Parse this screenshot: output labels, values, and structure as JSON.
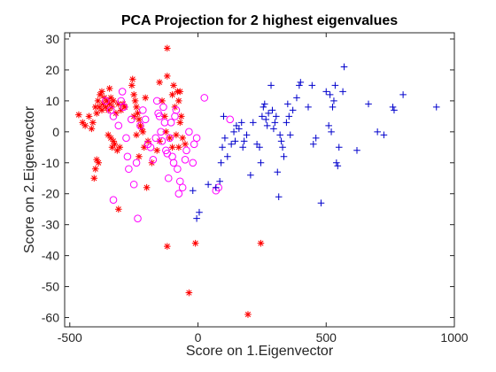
{
  "chart_data": {
    "type": "scatter",
    "title": "PCA Projection for 2 highest eigenvalues",
    "xlabel": "Score on 1.Eigenvector",
    "ylabel": "Score on 2.Eigenvector",
    "xlim": [
      -520,
      1000
    ],
    "ylim": [
      -63,
      32
    ],
    "xticks": [
      -500,
      0,
      500,
      1000
    ],
    "yticks": [
      -60,
      -50,
      -40,
      -30,
      -20,
      -10,
      0,
      10,
      20,
      30
    ],
    "grid": false,
    "legend": "none",
    "series": [
      {
        "marker": "asterisk",
        "color": "#ff0000",
        "points": [
          [
            -465,
            5.5
          ],
          [
            -450,
            3
          ],
          [
            -440,
            2
          ],
          [
            -425,
            5
          ],
          [
            -415,
            1
          ],
          [
            -410,
            3
          ],
          [
            -400,
            8
          ],
          [
            -395,
            6
          ],
          [
            -390,
            10
          ],
          [
            -385,
            8
          ],
          [
            -382,
            12
          ],
          [
            -375,
            7
          ],
          [
            -370,
            9
          ],
          [
            -365,
            11
          ],
          [
            -360,
            8
          ],
          [
            -355,
            10
          ],
          [
            -350,
            7
          ],
          [
            -345,
            9
          ],
          [
            -340,
            11
          ],
          [
            -335,
            8
          ],
          [
            -330,
            10
          ],
          [
            -320,
            6
          ],
          [
            -310,
            9
          ],
          [
            -300,
            7
          ],
          [
            -292,
            9
          ],
          [
            -285,
            8
          ],
          [
            -375,
            13
          ],
          [
            -345,
            14
          ],
          [
            -330,
            -3
          ],
          [
            -340,
            -2
          ],
          [
            -335,
            -5
          ],
          [
            -325,
            -4
          ],
          [
            -315,
            -6
          ],
          [
            -305,
            -5
          ],
          [
            -388,
            -10
          ],
          [
            -400,
            -12
          ],
          [
            -405,
            -15
          ],
          [
            -310,
            -25
          ],
          [
            -395,
            -9
          ],
          [
            -350,
            -1
          ],
          [
            -255,
            17
          ],
          [
            -258,
            15
          ],
          [
            -250,
            12
          ],
          [
            -245,
            10
          ],
          [
            -240,
            8
          ],
          [
            -235,
            6
          ],
          [
            -250,
            5
          ],
          [
            -230,
            4
          ],
          [
            -225,
            2
          ],
          [
            -220,
            1
          ],
          [
            -240,
            -1
          ],
          [
            -210,
            -5
          ],
          [
            -230,
            -8
          ],
          [
            -215,
            0
          ],
          [
            -195,
            -3
          ],
          [
            -205,
            11
          ],
          [
            -200,
            -18
          ],
          [
            -180,
            -10
          ],
          [
            -160,
            -6
          ],
          [
            -150,
            -3
          ],
          [
            -140,
            10
          ],
          [
            -130,
            5
          ],
          [
            -125,
            0
          ],
          [
            -110,
            -2
          ],
          [
            -100,
            12
          ],
          [
            -95,
            15
          ],
          [
            -90,
            8
          ],
          [
            -80,
            13
          ],
          [
            -75,
            10
          ],
          [
            -70,
            3
          ],
          [
            -65,
            5
          ],
          [
            -60,
            -2
          ],
          [
            -75,
            -5
          ],
          [
            -70,
            13
          ],
          [
            -50,
            -4
          ],
          [
            -85,
            -1
          ],
          [
            -120,
            27
          ],
          [
            -120,
            18
          ],
          [
            -120,
            -37
          ],
          [
            -100,
            -5
          ],
          [
            -10,
            -36
          ],
          [
            -35,
            -52
          ],
          [
            245,
            -36
          ],
          [
            195,
            -59
          ],
          [
            -150,
            16
          ]
        ]
      },
      {
        "marker": "circle",
        "color": "#ff00ff",
        "points": [
          [
            -360,
            10
          ],
          [
            -340,
            7
          ],
          [
            -330,
            5
          ],
          [
            -310,
            2
          ],
          [
            -300,
            10
          ],
          [
            -295,
            13
          ],
          [
            -290,
            8
          ],
          [
            -280,
            -2
          ],
          [
            -275,
            -8
          ],
          [
            -270,
            -12
          ],
          [
            -260,
            4
          ],
          [
            -250,
            -17
          ],
          [
            -240,
            -10
          ],
          [
            -235,
            -28
          ],
          [
            -225,
            2
          ],
          [
            -215,
            7
          ],
          [
            -205,
            4
          ],
          [
            -195,
            -4
          ],
          [
            -185,
            -5
          ],
          [
            -175,
            -9
          ],
          [
            -165,
            -2
          ],
          [
            -160,
            10
          ],
          [
            -155,
            6
          ],
          [
            -150,
            5
          ],
          [
            -145,
            0
          ],
          [
            -140,
            -3
          ],
          [
            -135,
            8
          ],
          [
            -130,
            3
          ],
          [
            -125,
            -6
          ],
          [
            -120,
            -7
          ],
          [
            -115,
            -15
          ],
          [
            -110,
            -2
          ],
          [
            -105,
            3
          ],
          [
            -100,
            -8
          ],
          [
            -95,
            -10
          ],
          [
            -90,
            5
          ],
          [
            -85,
            7
          ],
          [
            -80,
            -12
          ],
          [
            -75,
            -20
          ],
          [
            -70,
            -16
          ],
          [
            -60,
            -18
          ],
          [
            -50,
            -9
          ],
          [
            -45,
            -6
          ],
          [
            -35,
            0
          ],
          [
            -20,
            -10
          ],
          [
            -15,
            -4
          ],
          [
            -5,
            -2
          ],
          [
            25,
            11
          ],
          [
            70,
            -19
          ],
          [
            80,
            -18
          ],
          [
            125,
            4
          ],
          [
            -330,
            -22
          ]
        ]
      },
      {
        "marker": "plus",
        "color": "#0000cc",
        "points": [
          [
            -5,
            -28
          ],
          [
            5,
            -26
          ],
          [
            -20,
            -19
          ],
          [
            40,
            -17
          ],
          [
            70,
            -18
          ],
          [
            85,
            -16
          ],
          [
            90,
            -10
          ],
          [
            95,
            -5
          ],
          [
            100,
            5
          ],
          [
            105,
            -2
          ],
          [
            115,
            -8
          ],
          [
            130,
            -4
          ],
          [
            140,
            0
          ],
          [
            145,
            -3
          ],
          [
            150,
            2
          ],
          [
            160,
            1
          ],
          [
            170,
            3
          ],
          [
            175,
            -5
          ],
          [
            180,
            -3
          ],
          [
            190,
            -1
          ],
          [
            205,
            -14
          ],
          [
            215,
            3
          ],
          [
            230,
            -4
          ],
          [
            240,
            -5
          ],
          [
            245,
            -10
          ],
          [
            250,
            5
          ],
          [
            255,
            8
          ],
          [
            260,
            9
          ],
          [
            265,
            4
          ],
          [
            270,
            2
          ],
          [
            275,
            6
          ],
          [
            285,
            15
          ],
          [
            290,
            7
          ],
          [
            295,
            1
          ],
          [
            300,
            3
          ],
          [
            305,
            5
          ],
          [
            310,
            -13
          ],
          [
            315,
            -21
          ],
          [
            320,
            -1
          ],
          [
            325,
            -3
          ],
          [
            330,
            -5
          ],
          [
            335,
            -8
          ],
          [
            345,
            3
          ],
          [
            350,
            9
          ],
          [
            355,
            5
          ],
          [
            360,
            -1
          ],
          [
            370,
            7
          ],
          [
            385,
            11
          ],
          [
            395,
            15
          ],
          [
            400,
            16
          ],
          [
            430,
            8
          ],
          [
            445,
            15
          ],
          [
            450,
            -4
          ],
          [
            460,
            -2
          ],
          [
            480,
            -23
          ],
          [
            500,
            13
          ],
          [
            510,
            2
          ],
          [
            515,
            12
          ],
          [
            520,
            0
          ],
          [
            525,
            8
          ],
          [
            530,
            10
          ],
          [
            535,
            15
          ],
          [
            540,
            -10
          ],
          [
            545,
            -11
          ],
          [
            550,
            -5
          ],
          [
            565,
            13
          ],
          [
            570,
            21
          ],
          [
            620,
            -6
          ],
          [
            665,
            9
          ],
          [
            700,
            0
          ],
          [
            725,
            -1
          ],
          [
            760,
            8
          ],
          [
            765,
            7
          ],
          [
            800,
            12
          ],
          [
            930,
            8
          ]
        ]
      }
    ]
  }
}
